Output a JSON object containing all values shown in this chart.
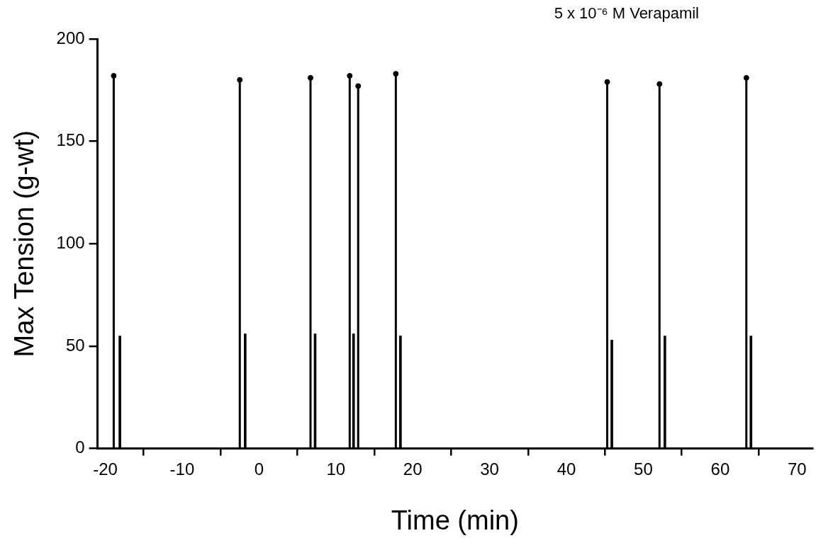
{
  "chart_data": {
    "type": "lollipop",
    "title": "5 x 10⁻⁶ M Verapamil",
    "xlabel": "Time (min)",
    "ylabel": "Max Tension (g-wt)",
    "xlim": [
      -21,
      72
    ],
    "xticks": [
      -20,
      -10,
      0,
      10,
      20,
      30,
      40,
      50,
      60,
      70
    ],
    "ylim": [
      0,
      200
    ],
    "yticks": [
      0,
      50,
      100,
      150,
      200
    ],
    "grid": false,
    "legend": false,
    "series": [
      {
        "color": "#000000",
        "marker": "circle",
        "x": [
          -18.9,
          -2.5,
          6.7,
          11.8,
          12.9,
          17.8,
          45.3,
          52.1,
          63.4
        ],
        "values": [
          182,
          180,
          181,
          182,
          177,
          183,
          179,
          178,
          181
        ]
      },
      {
        "type": "bar",
        "color": "#000000",
        "x": [
          -18.1,
          -1.8,
          7.3,
          12.3,
          18.4,
          45.9,
          52.8,
          64.0
        ],
        "values": [
          55,
          56,
          56,
          56,
          55,
          53,
          55,
          55
        ]
      }
    ]
  }
}
